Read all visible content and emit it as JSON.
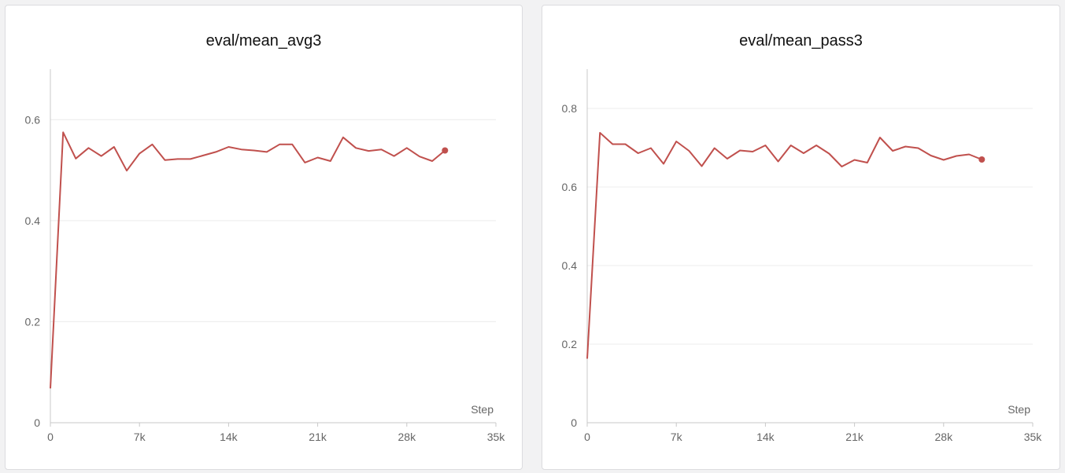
{
  "chart_data": [
    {
      "type": "line",
      "title": "eval/mean_avg3",
      "xlabel": "Step",
      "ylabel": "",
      "xlim": [
        0,
        35000
      ],
      "ylim": [
        0,
        0.7
      ],
      "x_ticks": [
        0,
        7000,
        14000,
        21000,
        28000,
        35000
      ],
      "x_tick_labels": [
        "0",
        "7k",
        "14k",
        "21k",
        "28k",
        "35k"
      ],
      "y_ticks": [
        0,
        0.2,
        0.4,
        0.6
      ],
      "y_tick_labels": [
        "0",
        "0.2",
        "0.4",
        "0.6"
      ],
      "grid": true,
      "line_color": "#c0504d",
      "series": [
        {
          "x": [
            0,
            1000,
            2000,
            3000,
            4000,
            5000,
            6000,
            7000,
            8000,
            9000,
            10000,
            11000,
            12000,
            13000,
            14000,
            15000,
            16000,
            17000,
            18000,
            19000,
            20000,
            21000,
            22000,
            23000,
            24000,
            25000,
            26000,
            27000,
            28000,
            29000,
            30000,
            31000
          ],
          "y": [
            0.068,
            0.575,
            0.523,
            0.544,
            0.528,
            0.546,
            0.499,
            0.533,
            0.551,
            0.52,
            0.522,
            0.522,
            0.529,
            0.536,
            0.546,
            0.541,
            0.539,
            0.536,
            0.551,
            0.551,
            0.515,
            0.525,
            0.518,
            0.565,
            0.544,
            0.538,
            0.541,
            0.528,
            0.544,
            0.527,
            0.518,
            0.539
          ]
        }
      ]
    },
    {
      "type": "line",
      "title": "eval/mean_pass3",
      "xlabel": "Step",
      "ylabel": "",
      "xlim": [
        0,
        35000
      ],
      "ylim": [
        0,
        0.9
      ],
      "x_ticks": [
        0,
        7000,
        14000,
        21000,
        28000,
        35000
      ],
      "x_tick_labels": [
        "0",
        "7k",
        "14k",
        "21k",
        "28k",
        "35k"
      ],
      "y_ticks": [
        0,
        0.2,
        0.4,
        0.6,
        0.8
      ],
      "y_tick_labels": [
        "0",
        "0.2",
        "0.4",
        "0.6",
        "0.8"
      ],
      "grid": true,
      "line_color": "#c0504d",
      "series": [
        {
          "x": [
            0,
            1000,
            2000,
            3000,
            4000,
            5000,
            6000,
            7000,
            8000,
            9000,
            10000,
            11000,
            12000,
            13000,
            14000,
            15000,
            16000,
            17000,
            18000,
            19000,
            20000,
            21000,
            22000,
            23000,
            24000,
            25000,
            26000,
            27000,
            28000,
            29000,
            30000,
            31000
          ],
          "y": [
            0.163,
            0.738,
            0.709,
            0.709,
            0.686,
            0.699,
            0.659,
            0.716,
            0.692,
            0.653,
            0.699,
            0.672,
            0.693,
            0.69,
            0.706,
            0.665,
            0.706,
            0.686,
            0.706,
            0.685,
            0.652,
            0.669,
            0.662,
            0.726,
            0.692,
            0.703,
            0.699,
            0.68,
            0.669,
            0.679,
            0.683,
            0.67
          ]
        }
      ]
    }
  ]
}
